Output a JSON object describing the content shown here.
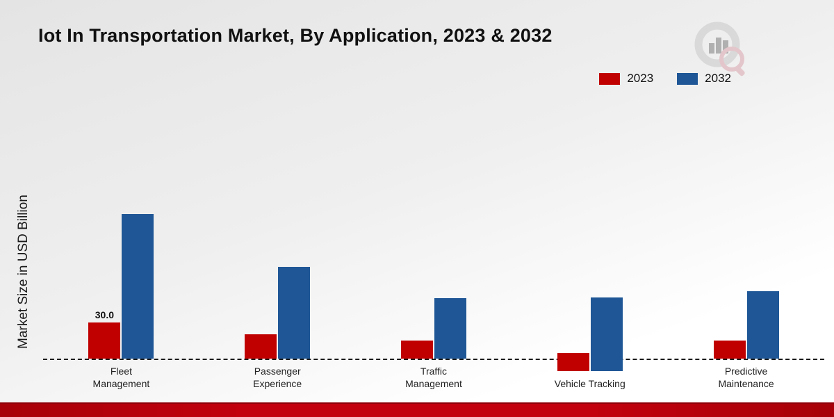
{
  "title": "Iot In Transportation Market, By Application, 2023 & 2032",
  "ylabel": "Market Size in USD Billion",
  "legend": [
    {
      "label": "2023",
      "color": "#c00000"
    },
    {
      "label": "2032",
      "color": "#1f5796"
    }
  ],
  "logo": {
    "name": "market-research-future-watermark-logo"
  },
  "chart_data": {
    "type": "bar",
    "title": "Iot In Transportation Market, By Application, 2023 & 2032",
    "xlabel": "",
    "ylabel": "Market Size in USD Billion",
    "ylim": [
      0,
      130
    ],
    "grid": false,
    "legend_position": "top-right",
    "categories": [
      "Fleet Management",
      "Passenger Experience",
      "Traffic Management",
      "Vehicle Tracking",
      "Predictive Maintenance"
    ],
    "series": [
      {
        "name": "2023",
        "color": "#c00000",
        "values": [
          30,
          20,
          15,
          15,
          15
        ]
      },
      {
        "name": "2032",
        "color": "#1f5796",
        "values": [
          120,
          76,
          50,
          61,
          56
        ]
      }
    ],
    "annotations": [
      {
        "series_index": 0,
        "category_index": 0,
        "text": "30.0"
      }
    ]
  }
}
